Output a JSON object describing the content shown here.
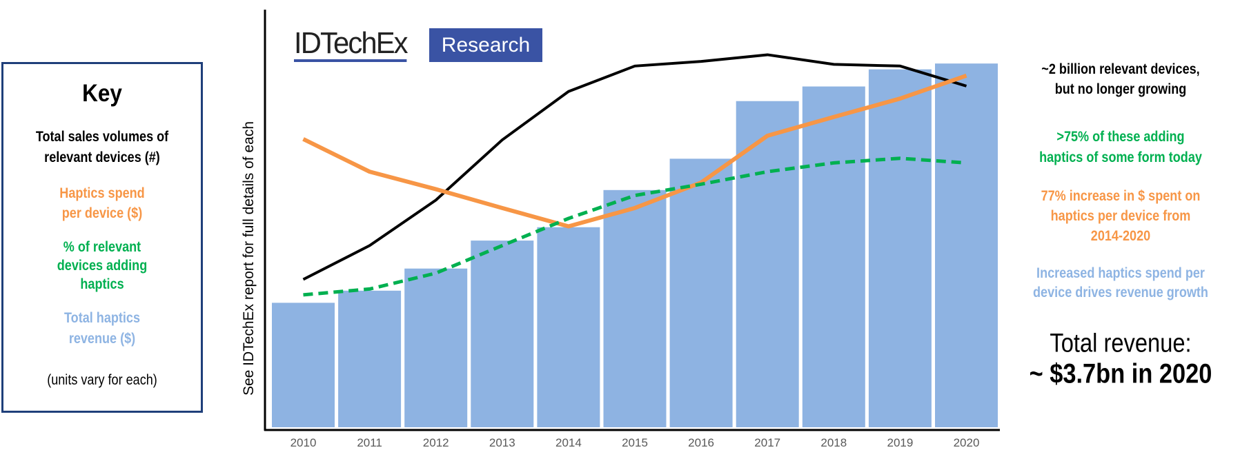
{
  "key": {
    "title": "Key",
    "volumes": [
      "Total sales volumes of",
      "relevant devices (#)"
    ],
    "spend": [
      "Haptics spend",
      "per device ($)"
    ],
    "percent": [
      "% of relevant",
      "devices adding",
      "haptics"
    ],
    "revenue": [
      "Total haptics",
      "revenue ($)"
    ],
    "note": "(units vary for each)"
  },
  "logo": {
    "brand": "IDTechEx",
    "tag": "Research"
  },
  "annotations": {
    "devices": [
      "~2 billion relevant devices,",
      "but no longer growing"
    ],
    "adoption": [
      ">75% of these adding",
      "haptics of some form today"
    ],
    "spend": [
      "77% increase in $ spent on",
      "haptics per device from",
      "2014-2020"
    ],
    "revenue": [
      "Increased haptics spend per",
      "device drives revenue growth"
    ],
    "total_label": "Total revenue:",
    "total_value": "~ $3.7bn in 2020"
  },
  "colors": {
    "bars": "#8EB3E2",
    "volumes": "#000000",
    "spend": "#F79646",
    "percent": "#00B050",
    "revenue_text": "#8EB4E3",
    "key_border": "#1F3F7A",
    "logo": "#3A53A4"
  },
  "chart_data": {
    "type": "bar",
    "ylabel": "See IDTechEx report for full details of each",
    "xlabel": "",
    "units_note": "relative index (0-100 of plot height); units vary for each",
    "ylim": [
      0,
      100
    ],
    "categories": [
      "2010",
      "2011",
      "2012",
      "2013",
      "2014",
      "2015",
      "2016",
      "2017",
      "2018",
      "2019",
      "2020"
    ],
    "series": [
      {
        "name": "Total haptics revenue ($)",
        "kind": "bar",
        "values": [
          29.8,
          32.7,
          38.0,
          44.7,
          47.9,
          56.8,
          64.3,
          78.1,
          81.6,
          85.7,
          87.1
        ]
      },
      {
        "name": "Total sales volumes of relevant devices (#)",
        "kind": "line",
        "values": [
          35.4,
          43.5,
          54.4,
          68.8,
          80.4,
          86.5,
          87.6,
          89.2,
          86.9,
          86.5,
          81.7
        ]
      },
      {
        "name": "Haptics spend per device ($)",
        "kind": "line",
        "values": [
          69.0,
          61.2,
          57.0,
          52.5,
          48.1,
          52.5,
          58.6,
          69.8,
          74.3,
          78.7,
          84.2
        ]
      },
      {
        "name": "% of relevant devices adding haptics",
        "kind": "dashed-line",
        "values": [
          31.7,
          33.1,
          36.9,
          43.5,
          50.0,
          55.5,
          58.2,
          61.2,
          63.3,
          64.4,
          63.3
        ]
      }
    ]
  }
}
